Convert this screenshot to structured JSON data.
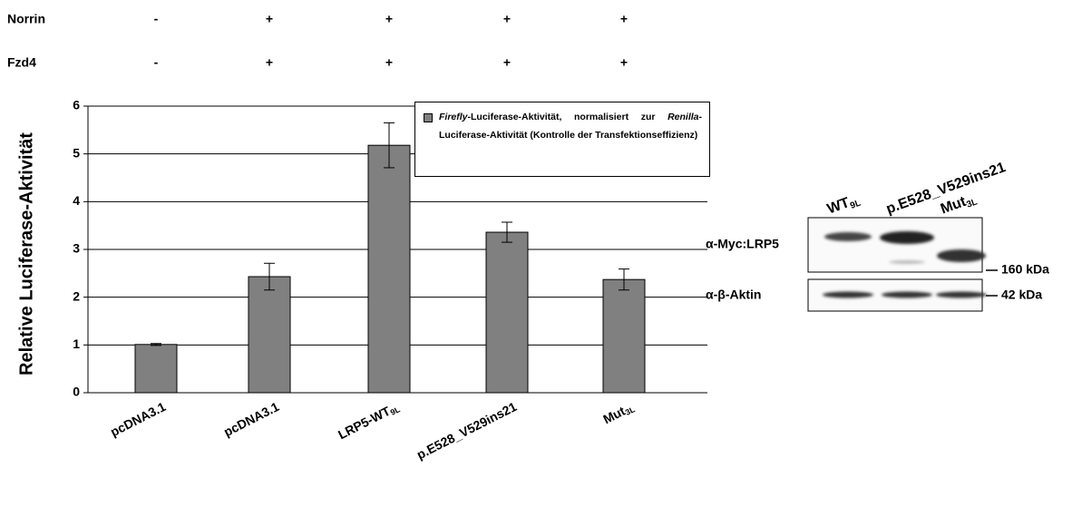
{
  "chart_data": {
    "type": "bar",
    "conditions": [
      {
        "label": "Norrin",
        "signs": [
          "-",
          "+",
          "+",
          "+",
          "+"
        ]
      },
      {
        "label": "Fzd4",
        "signs": [
          "-",
          "+",
          "+",
          "+",
          "+"
        ]
      }
    ],
    "y_label": "Relative Luciferase-Aktivität",
    "categories": [
      "pcDNA3.1",
      "pcDNA3.1",
      "LRP5-WT",
      "p.E528_V529ins21",
      "Mut"
    ],
    "category_subscripts": [
      null,
      null,
      "9L",
      null,
      "3L"
    ],
    "values": [
      1.01,
      2.43,
      5.18,
      3.36,
      2.37
    ],
    "errors": [
      0.02,
      0.28,
      0.47,
      0.21,
      0.22
    ],
    "color": "#808080",
    "ylim": [
      0,
      6
    ],
    "yticks": [
      0,
      1,
      2,
      3,
      4,
      5,
      6
    ],
    "grid": true,
    "legend": {
      "parts": [
        {
          "text": "Firefly",
          "italic": true
        },
        {
          "text": "-Luciferase-Aktivität, normalisiert zur "
        },
        {
          "text": "Renilla",
          "italic": true
        },
        {
          "text": "-Luciferase-Aktivität (Kontrolle der Transfektionseffizienz)"
        }
      ]
    }
  },
  "blot": {
    "lanes": [
      {
        "text": "WT",
        "sub": "9L"
      },
      {
        "text": "p.E528_V529ins21",
        "sub": null
      },
      {
        "text": "Mut",
        "sub": "3L"
      }
    ],
    "rows": [
      {
        "label": "α-Myc:LRP5",
        "marker": "160 kDa"
      },
      {
        "label": "α-β-Aktin",
        "marker": "42 kDa"
      }
    ]
  }
}
